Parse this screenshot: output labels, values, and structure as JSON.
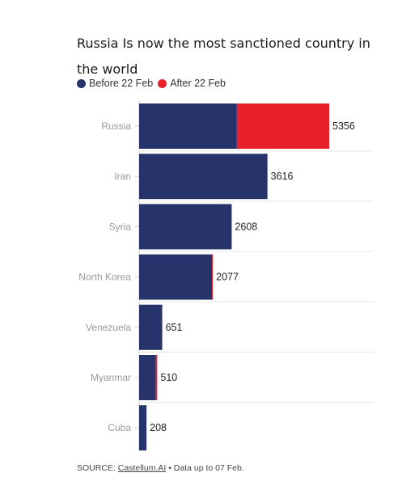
{
  "title": "Russia Is now the most sanctioned country in the world",
  "legend": {
    "before_label": "Before 22 Feb",
    "after_label": "After 22 Feb"
  },
  "colors": {
    "before": "#27336b",
    "after": "#e8202a",
    "category_label": "#999999",
    "value_label": "#222222",
    "gridline": "#e6e6e6"
  },
  "chart_data": {
    "type": "bar",
    "orientation": "horizontal",
    "stacked": true,
    "categories": [
      "Russia",
      "Iran",
      "Syria",
      "North Korea",
      "Venezuela",
      "Myanmar",
      "Cuba"
    ],
    "series": [
      {
        "name": "Before 22 Feb",
        "values": [
          2754,
          3616,
          2608,
          2052,
          651,
          470,
          208
        ]
      },
      {
        "name": "After 22 Feb",
        "values": [
          2602,
          0,
          0,
          25,
          0,
          40,
          0
        ]
      }
    ],
    "totals": [
      5356,
      3616,
      2608,
      2077,
      651,
      510,
      208
    ],
    "xlim": [
      0,
      5356
    ],
    "grid": true,
    "legend_position": "top-left"
  },
  "source": {
    "prefix": "SOURCE: ",
    "link_text": "Castellum.AI",
    "suffix": " • Data up to 07 Feb."
  }
}
